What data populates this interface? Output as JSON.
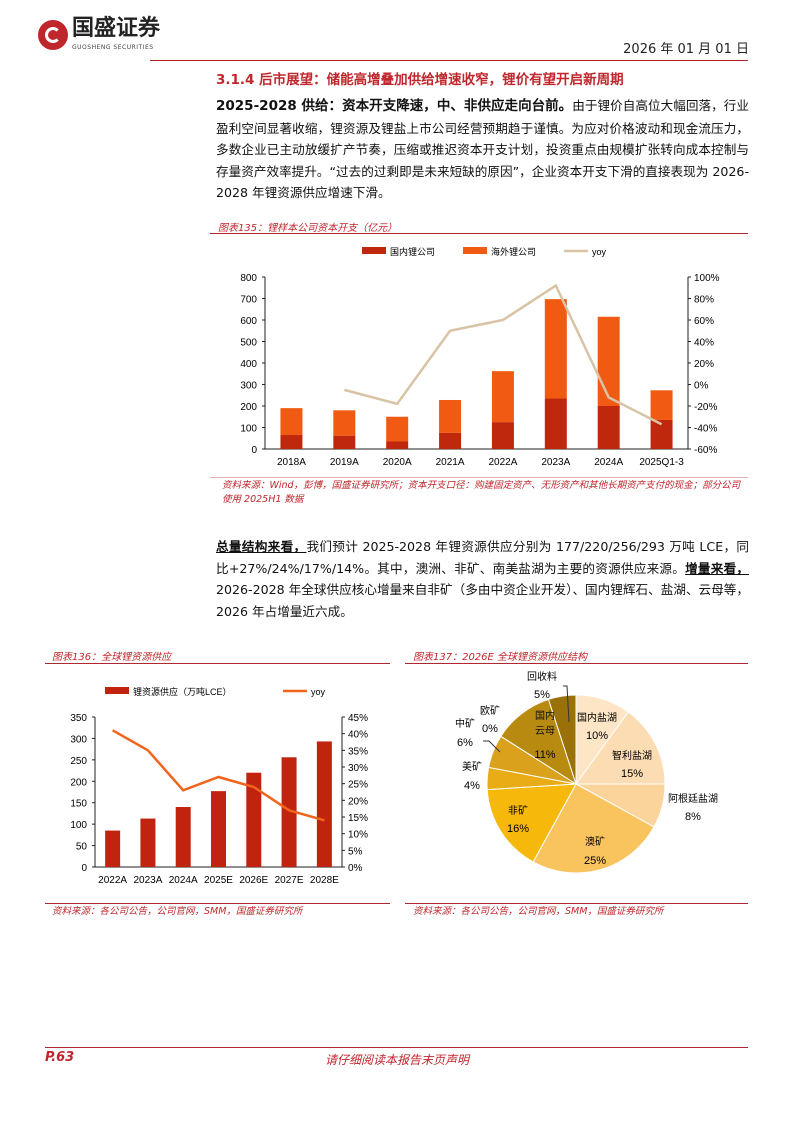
{
  "header": {
    "logo_cn": "国盛证券",
    "logo_en": "GUOSHENG SECURITIES",
    "date": "2026 年 01 月 01 日"
  },
  "section": {
    "title": "3.1.4 后市展望：储能高增叠加供给增速收窄，锂价有望开启新周期"
  },
  "para1": {
    "lead": "2025-2028 供给：资本开支降速，中、非供应走向台前。",
    "body": "由于锂价自高位大幅回落，行业盈利空间显著收缩，锂资源及锂盐上市公司经营预期趋于谨慎。为应对价格波动和现金流压力，多数企业已主动放缓扩产节奏，压缩或推迟资本开支计划，投资重点由规模扩张转向成本控制与存量资产效率提升。“过去的过剩即是未来短缺的原因”，企业资本开支下滑的直接表现为 2026-2028 年锂资源供应增速下滑。"
  },
  "para2": {
    "lead1": "总量结构来看，",
    "body1": "我们预计 2025-2028 年锂资源供应分别为 177/220/256/293 万吨 LCE，同比+27%/24%/17%/14%。其中，澳洲、非矿、南美盐湖为主要的资源供应来源。",
    "lead2": "增量来看，",
    "body2": "2026-2028 年全球供应核心增量来自非矿（多由中资企业开发）、国内锂辉石、盐湖、云母等，2026 年占增量近六成。"
  },
  "chart_data": [
    {
      "id": "fig135",
      "type": "bar",
      "stacked": true,
      "caption": "图表135：锂样本公司资本开支（亿元）",
      "categories": [
        "2018A",
        "2019A",
        "2020A",
        "2021A",
        "2022A",
        "2023A",
        "2024A",
        "2025Q1-3"
      ],
      "series": [
        {
          "name": "国内锂公司",
          "type": "bar",
          "color": "#c0280e",
          "values": [
            65,
            62,
            35,
            75,
            125,
            235,
            200,
            135
          ]
        },
        {
          "name": "海外锂公司",
          "type": "bar",
          "color": "#f05a12",
          "values": [
            125,
            118,
            115,
            153,
            237,
            462,
            415,
            138
          ]
        },
        {
          "name": "yoy",
          "type": "line",
          "axis": "right",
          "color": "#d9c3a5",
          "values": [
            null,
            -5,
            -18,
            50,
            60,
            92,
            -12,
            -37
          ]
        }
      ],
      "ylim": [
        0,
        800
      ],
      "yticks": [
        0,
        100,
        200,
        300,
        400,
        500,
        600,
        700,
        800
      ],
      "y2lim": [
        -60,
        100
      ],
      "y2ticks": [
        "-60%",
        "-40%",
        "-20%",
        "0%",
        "20%",
        "40%",
        "60%",
        "80%",
        "100%"
      ],
      "legend": "top",
      "source": "资料来源：Wind，彭博，国盛证券研究所；资本开支口径：购建固定资产、无形资产和其他长期资产支付的现金；部分公司使用 2025H1 数据"
    },
    {
      "id": "fig136",
      "type": "bar",
      "caption": "图表136：全球锂资源供应",
      "categories": [
        "2022A",
        "2023A",
        "2024A",
        "2025E",
        "2026E",
        "2027E",
        "2028E"
      ],
      "series": [
        {
          "name": "锂资源供应（万吨LCE）",
          "type": "bar",
          "color": "#c0230e",
          "values": [
            85,
            113,
            140,
            177,
            220,
            256,
            293
          ]
        },
        {
          "name": "yoy",
          "type": "line",
          "axis": "right",
          "color": "#f0641c",
          "values": [
            41,
            35,
            23,
            27,
            24,
            17,
            14
          ]
        }
      ],
      "ylim": [
        0,
        350
      ],
      "yticks": [
        0,
        50,
        100,
        150,
        200,
        250,
        300,
        350
      ],
      "y2lim": [
        0,
        45
      ],
      "y2ticks": [
        "0%",
        "5%",
        "10%",
        "15%",
        "20%",
        "25%",
        "30%",
        "35%",
        "40%",
        "45%"
      ],
      "legend": "top",
      "source": "资料来源：各公司公告，公司官网，SMM，国盛证券研究所"
    },
    {
      "id": "fig137",
      "type": "pie",
      "caption": "图表137：2026E 全球锂资源供应结构",
      "slices": [
        {
          "label": "国内盐湖",
          "value": 10,
          "color": "#fde5c6"
        },
        {
          "label": "智利盐湖",
          "value": 15,
          "color": "#fcdcb2"
        },
        {
          "label": "阿根廷盐湖",
          "value": 8,
          "color": "#fbd49c"
        },
        {
          "label": "澳矿",
          "value": 25,
          "color": "#f9c35e"
        },
        {
          "label": "非矿",
          "value": 16,
          "color": "#f6b80a"
        },
        {
          "label": "美矿",
          "value": 4,
          "color": "#e9ac16"
        },
        {
          "label": "中矿",
          "value": 6,
          "color": "#d9a11c"
        },
        {
          "label": "欧矿",
          "value": 0,
          "color": "#c99514"
        },
        {
          "label": "国内云母",
          "value": 11,
          "color": "#b98a10"
        },
        {
          "label": "回收料",
          "value": 5,
          "color": "#9a7108"
        }
      ],
      "source": "资料来源：各公司公告，公司官网，SMM，国盛证券研究所"
    }
  ],
  "footer": {
    "page": "P.63",
    "disclaimer": "请仔细阅读本报告末页声明"
  }
}
